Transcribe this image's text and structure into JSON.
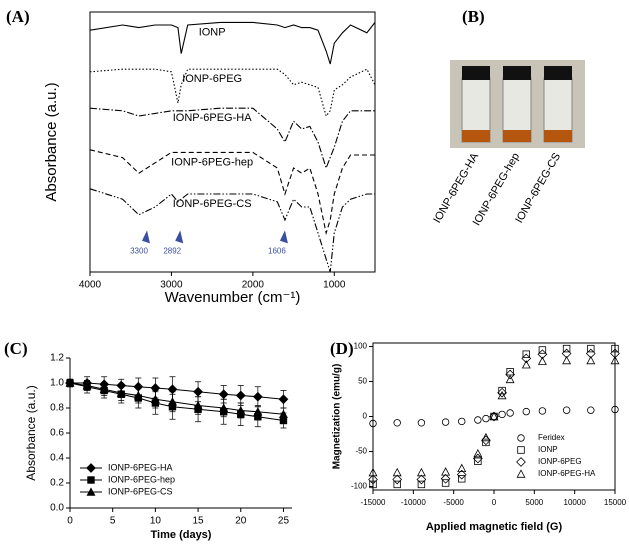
{
  "chart_data": [
    {
      "type": "line",
      "panel": "(A)",
      "x_label": "Wavenumber (cm⁻¹)",
      "y_label": "Absorbance (a.u.)",
      "xlim": [
        4000,
        500
      ],
      "ylim": [
        0,
        100
      ],
      "xticks": [
        4000,
        3000,
        2000,
        1000
      ],
      "x": [
        4000,
        3600,
        3400,
        3200,
        3000,
        2920,
        2880,
        2800,
        2400,
        2000,
        1700,
        1606,
        1500,
        1400,
        1300,
        1200,
        1100,
        1050,
        1000,
        900,
        800,
        600,
        500
      ],
      "series": [
        {
          "name": "IONP",
          "color": "#000000",
          "style": "solid",
          "values": [
            93,
            95,
            94,
            95,
            95,
            94,
            84,
            95,
            96,
            96,
            95,
            94,
            95,
            94,
            94,
            93,
            85,
            80,
            88,
            92,
            95,
            92,
            96
          ]
        },
        {
          "name": "IONP-6PEG",
          "color": "#000000",
          "style": "dotted",
          "values": [
            77,
            78,
            78,
            78,
            77,
            65,
            72,
            78,
            78,
            78,
            78,
            76,
            72,
            73,
            72,
            71,
            60,
            62,
            70,
            72,
            75,
            78,
            72
          ]
        },
        {
          "name": "IONP-6PEG-HA",
          "color": "#000000",
          "style": "dashdot",
          "values": [
            63,
            62,
            60,
            61,
            62,
            62,
            62,
            62,
            63,
            63,
            55,
            50,
            58,
            55,
            56,
            50,
            40,
            44,
            48,
            58,
            62,
            62,
            62
          ]
        },
        {
          "name": "IONP-6PEG-hep",
          "color": "#000000",
          "style": "dashed",
          "values": [
            47,
            44,
            38,
            42,
            46,
            46,
            46,
            46,
            46,
            46,
            40,
            30,
            40,
            38,
            40,
            30,
            15,
            20,
            30,
            40,
            45,
            45,
            45
          ]
        },
        {
          "name": "IONP-6PEG-CS",
          "color": "#000000",
          "style": "dashdotdot",
          "values": [
            32,
            28,
            22,
            25,
            30,
            27,
            28,
            30,
            30,
            30,
            27,
            20,
            28,
            25,
            25,
            15,
            5,
            0,
            15,
            25,
            28,
            30,
            30
          ]
        }
      ],
      "annotations": [
        3300,
        2892,
        1606
      ],
      "annotation_color": "#3b4fa0"
    },
    {
      "type": "photo",
      "panel": "(B)",
      "captions": [
        "IONP-6PEG-HA",
        "IONP-6PEG-hep",
        "IONP-6PEG-CS"
      ]
    },
    {
      "type": "errorline",
      "panel": "(C)",
      "x_label": "Time (days)",
      "y_label": "Absorbance (a.u.)",
      "xlim": [
        0,
        26
      ],
      "ylim": [
        0,
        1.2
      ],
      "xticks": [
        0,
        5,
        10,
        15,
        20,
        25
      ],
      "yticks": [
        {
          "value": 0,
          "label": "0.0"
        },
        0.2,
        0.4,
        0.6,
        0.8,
        {
          "value": 1,
          "label": "1.0"
        },
        1.2
      ],
      "x": [
        0,
        2,
        4,
        6,
        8,
        10,
        12,
        15,
        18,
        20,
        22,
        25
      ],
      "series": [
        {
          "name": "IONP-6PEG-HA",
          "color": "#000000",
          "marker": "diamond",
          "values": [
            1.0,
            1.0,
            0.99,
            0.98,
            0.97,
            0.96,
            0.95,
            0.93,
            0.91,
            0.9,
            0.89,
            0.87
          ],
          "errors": [
            0.03,
            0.05,
            0.06,
            0.05,
            0.07,
            0.08,
            0.1,
            0.08,
            0.07,
            0.08,
            0.08,
            0.07
          ]
        },
        {
          "name": "IONP-6PEG-hep",
          "color": "#000000",
          "marker": "square",
          "values": [
            1.0,
            0.97,
            0.94,
            0.91,
            0.88,
            0.84,
            0.81,
            0.79,
            0.77,
            0.75,
            0.73,
            0.7
          ],
          "errors": [
            0.03,
            0.05,
            0.06,
            0.07,
            0.08,
            0.09,
            0.1,
            0.1,
            0.1,
            0.09,
            0.08,
            0.06
          ]
        },
        {
          "name": "IONP-6PEG-CS",
          "color": "#000000",
          "marker": "triangle",
          "values": [
            1.0,
            0.98,
            0.95,
            0.92,
            0.9,
            0.87,
            0.85,
            0.82,
            0.8,
            0.78,
            0.77,
            0.75
          ],
          "errors": [
            0.03,
            0.04,
            0.05,
            0.06,
            0.06,
            0.07,
            0.08,
            0.07,
            0.07,
            0.06,
            0.05,
            0.05
          ]
        }
      ],
      "legend": "lower-left"
    },
    {
      "type": "scatter",
      "panel": "(D)",
      "x_label": "Applied magnetic field (G)",
      "y_label": "Magnetization (emu/g)",
      "xlim": [
        -15000,
        15000
      ],
      "ylim": [
        -105,
        105
      ],
      "xticks": [
        -15000,
        -10000,
        -5000,
        0,
        5000,
        10000,
        15000
      ],
      "yticks": [
        -100,
        -50,
        0,
        50,
        100
      ],
      "x": [
        -15000,
        -12000,
        -9000,
        -6000,
        -4000,
        -2000,
        -1000,
        0,
        1000,
        2000,
        4000,
        6000,
        9000,
        12000,
        15000
      ],
      "series": [
        {
          "name": "Feridex",
          "color": "#000000",
          "marker": "circle",
          "values": [
            -10,
            -9,
            -9,
            -8,
            -7,
            -5,
            -3,
            0,
            3,
            5,
            7,
            8,
            9,
            9,
            10
          ]
        },
        {
          "name": "IONP",
          "color": "#000000",
          "marker": "square",
          "values": [
            -97,
            -97,
            -97,
            -95,
            -89,
            -64,
            -37,
            0,
            37,
            64,
            89,
            95,
            97,
            97,
            97
          ]
        },
        {
          "name": "IONP-6PEG",
          "color": "#000000",
          "marker": "diamond",
          "values": [
            -90,
            -90,
            -90,
            -89,
            -83,
            -60,
            -34,
            0,
            34,
            60,
            83,
            89,
            90,
            90,
            90
          ]
        },
        {
          "name": "IONP-6PEG-HA",
          "color": "#000000",
          "marker": "triangle",
          "values": [
            -80,
            -80,
            -80,
            -79,
            -74,
            -53,
            -30,
            0,
            30,
            53,
            74,
            79,
            80,
            80,
            80
          ]
        }
      ],
      "legend": "lower-right"
    }
  ]
}
